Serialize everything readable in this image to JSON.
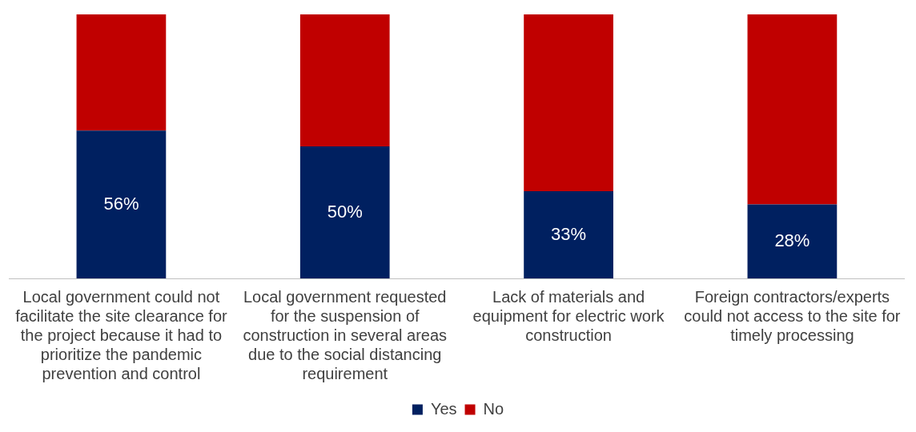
{
  "chart_data": {
    "type": "bar",
    "stacked": true,
    "categories": [
      "Local government could not facilitate the site clearance for the project because it had to prioritize the pandemic prevention and control",
      "Local government requested for the suspension of construction in several areas due to the social distancing requirement",
      "Lack of materials and equipment for electric work construction",
      "Foreign contractors/experts could not access to the site for timely processing"
    ],
    "series": [
      {
        "name": "Yes",
        "color": "#002060",
        "values": [
          56,
          50,
          33,
          28
        ],
        "value_labels": [
          "56%",
          "50%",
          "33%",
          "28%"
        ]
      },
      {
        "name": "No",
        "color": "#c00000",
        "values": [
          44,
          50,
          67,
          72
        ]
      }
    ],
    "legend": "bottom",
    "grid": false
  }
}
